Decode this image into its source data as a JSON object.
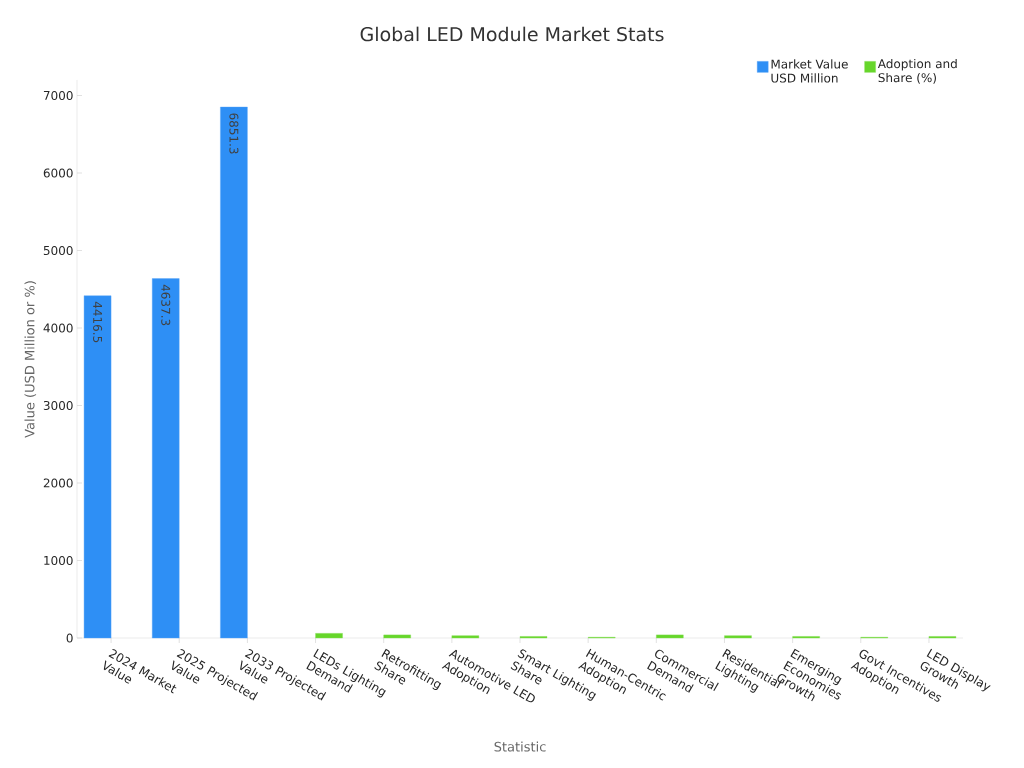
{
  "chart_data": {
    "type": "bar",
    "title": "Global LED Module Market Stats",
    "xlabel": "Statistic",
    "ylabel": "Value (USD Million or %)",
    "categories": [
      "2024 Market Value",
      "2025 Projected Value",
      "2033 Projected Value",
      "LEDs Lighting Demand",
      "Retrofitting Share",
      "Automotive LED Adoption",
      "Smart Lighting Share",
      "Human-Centric Adoption",
      "Commercial Demand",
      "Residential Lighting",
      "Emerging Economies Growth",
      "Govt Incentives Adoption",
      "LED Display Growth"
    ],
    "series": [
      {
        "name": "Market Value USD Million",
        "color": "#2e8ff5",
        "values": [
          4416.5,
          4637.3,
          6851.3,
          null,
          null,
          null,
          null,
          null,
          null,
          null,
          null,
          null,
          null
        ],
        "value_labels": [
          "4416.5",
          "4637.3",
          "6851.3",
          null,
          null,
          null,
          null,
          null,
          null,
          null,
          null,
          null,
          null
        ]
      },
      {
        "name": "Adoption and Share (%)",
        "color": "#66d62a",
        "values": [
          null,
          null,
          null,
          60,
          40,
          30,
          20,
          10,
          40,
          30,
          20,
          10,
          20
        ]
      }
    ],
    "ylim": [
      0,
      7200
    ],
    "yticks": [
      0,
      1000,
      2000,
      3000,
      4000,
      5000,
      6000,
      7000
    ],
    "legend": "top right"
  }
}
